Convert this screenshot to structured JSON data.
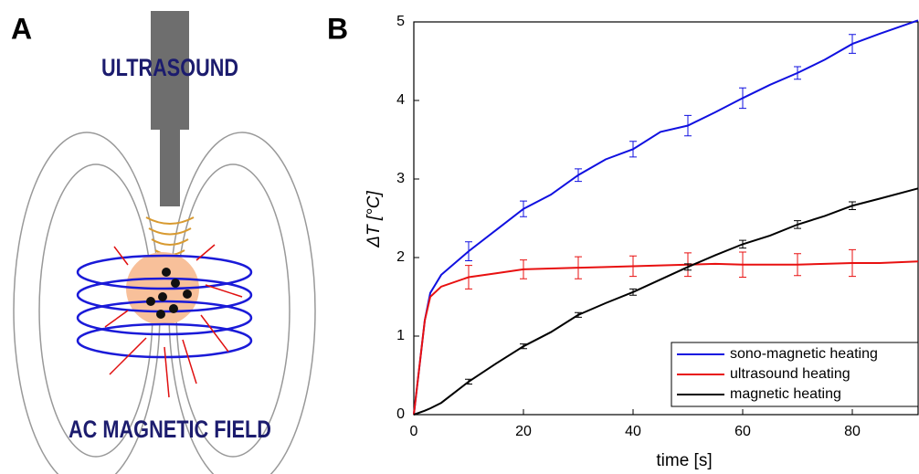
{
  "diagram": {
    "panel_label": "A",
    "top_label": "ULTRASOUND",
    "bottom_label": "AC MAGNETIC FIELD"
  },
  "chart_data": {
    "type": "line",
    "panel_label": "B",
    "x_label": "time [s]",
    "y_label": "ΔT [°C]",
    "x": [
      0,
      2,
      3,
      5,
      10,
      15,
      20,
      25,
      30,
      35,
      40,
      45,
      50,
      55,
      60,
      65,
      70,
      75,
      80,
      85,
      92
    ],
    "series": [
      {
        "name": "sono-magnetic heating",
        "color": "#1010e0",
        "values": [
          0,
          1.2,
          1.55,
          1.78,
          2.08,
          2.35,
          2.62,
          2.8,
          3.05,
          3.25,
          3.38,
          3.6,
          3.68,
          3.85,
          4.03,
          4.2,
          4.35,
          4.52,
          4.72,
          4.85,
          5.02
        ],
        "errors": [
          null,
          null,
          null,
          null,
          0.12,
          null,
          0.1,
          null,
          0.08,
          null,
          0.1,
          null,
          0.13,
          null,
          0.13,
          null,
          0.08,
          null,
          0.12,
          null,
          null
        ]
      },
      {
        "name": "ultrasound heating",
        "color": "#e81010",
        "values": [
          0,
          1.2,
          1.5,
          1.63,
          1.75,
          1.8,
          1.85,
          1.86,
          1.87,
          1.88,
          1.89,
          1.9,
          1.91,
          1.92,
          1.91,
          1.91,
          1.91,
          1.92,
          1.93,
          1.93,
          1.95
        ],
        "errors": [
          null,
          null,
          null,
          null,
          0.15,
          null,
          0.12,
          null,
          0.14,
          null,
          0.13,
          null,
          0.15,
          null,
          0.16,
          null,
          0.14,
          null,
          0.17,
          null,
          null
        ]
      },
      {
        "name": "magnetic heating",
        "color": "#000000",
        "values": [
          0,
          0.05,
          0.08,
          0.15,
          0.42,
          0.65,
          0.87,
          1.05,
          1.27,
          1.42,
          1.56,
          1.72,
          1.88,
          2.03,
          2.17,
          2.28,
          2.42,
          2.53,
          2.66,
          2.75,
          2.88
        ],
        "errors": [
          null,
          null,
          null,
          null,
          0.03,
          null,
          0.03,
          null,
          0.03,
          null,
          0.04,
          null,
          0.04,
          null,
          0.05,
          null,
          0.05,
          null,
          0.05,
          null,
          null
        ]
      }
    ],
    "xlim": [
      0,
      92
    ],
    "xticks": [
      0,
      20,
      40,
      60,
      80
    ],
    "ylim": [
      0,
      5
    ],
    "yticks": [
      0,
      1,
      2,
      3,
      4,
      5
    ],
    "legend": "lower right"
  }
}
